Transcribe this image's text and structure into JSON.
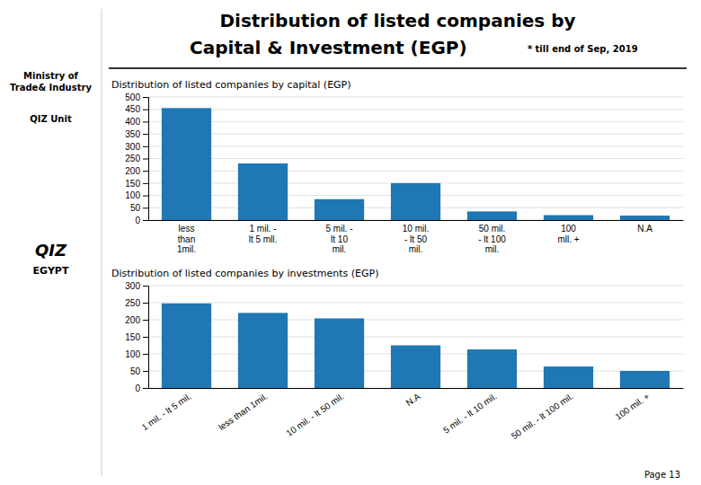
{
  "title": "Distribution of listed companies by",
  "subtitle": "Capital & Investment (EGP)",
  "annotations": [
    "* till end of Sep, 2019",
    "Ministry of\nTrade& Industry",
    "QIZ Unit",
    "QIZ",
    "EGYPT",
    "Page 13"
  ],
  "chart_data": [
    {
      "type": "bar",
      "title": "Distribution of listed companies by capital (EGP)",
      "categories": [
        "less\nthan\n1mil.",
        "1 mil. -\nlt 5 mll.",
        "5 mil. -\nlt 10\nmil.",
        "10 mil.\n- lt 50\nmil.",
        "50 mil.\n- lt 100\nmil.",
        "100\nmll. +",
        "N.A"
      ],
      "values": [
        455,
        230,
        85,
        150,
        35,
        20,
        18
      ],
      "ylim": [
        0,
        500
      ],
      "yticks": [
        0,
        50,
        100,
        150,
        200,
        250,
        300,
        350,
        400,
        450,
        500
      ],
      "grid": true
    },
    {
      "type": "bar",
      "title": "Distribution of listed companies by investments (EGP)",
      "categories": [
        "1 mil. - lt 5 mil.",
        "less than 1mil.",
        "10 mil. - lt 50 mil.",
        "N.A",
        "5 mil. - lt 10 mil.",
        "50 mil. - lt 100 mil.",
        "100 mil. +"
      ],
      "values": [
        248,
        220,
        204,
        125,
        113,
        63,
        50
      ],
      "ylim": [
        0,
        300
      ],
      "yticks": [
        0,
        50,
        100,
        150,
        200,
        250,
        300
      ],
      "grid": true
    }
  ]
}
